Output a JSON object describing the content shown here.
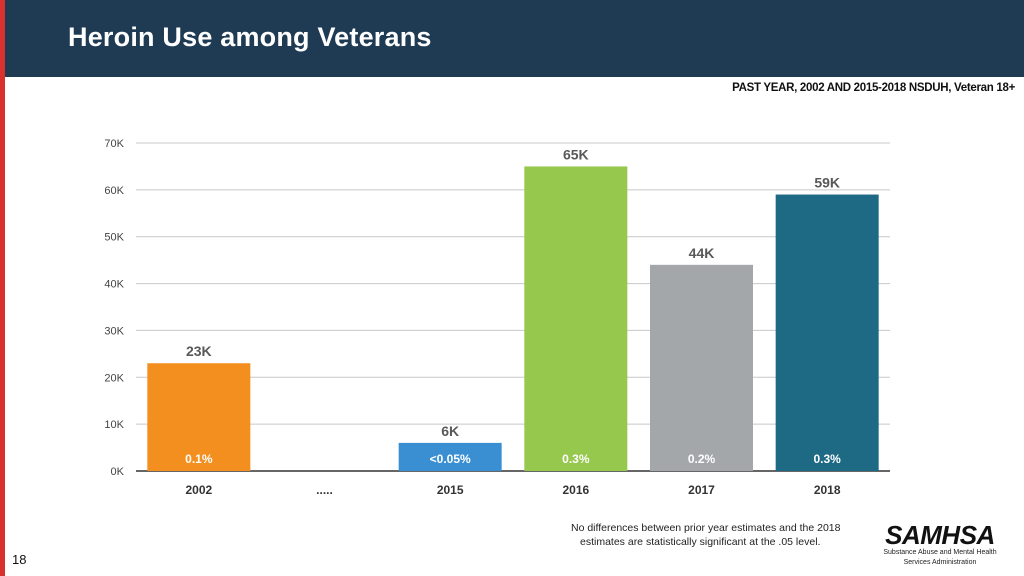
{
  "slide": {
    "title": "Heroin Use among Veterans",
    "subtitle": "PAST YEAR, 2002 AND 2015-2018  NSDUH, Veteran 18+",
    "note_line1": "No differences between prior year estimates and the 2018",
    "note_line2": "estimates are statistically significant at the .05 level.",
    "page_number": "18",
    "logo_text": "SAMHSA",
    "logo_line1": "Substance Abuse and Mental Health",
    "logo_line2": "Services Administration"
  },
  "chart_data": {
    "type": "bar",
    "title": "",
    "xlabel": "",
    "ylabel": "",
    "ylim": [
      0,
      70
    ],
    "yticks": [
      "0K",
      "10K",
      "20K",
      "30K",
      "40K",
      "50K",
      "60K",
      "70K"
    ],
    "grid": true,
    "categories": [
      "2002",
      ".....",
      "2015",
      "2016",
      "2017",
      "2018"
    ],
    "values": [
      23,
      null,
      6,
      65,
      44,
      59
    ],
    "value_labels": [
      "23K",
      "",
      "6K",
      "65K",
      "44K",
      "59K"
    ],
    "percent_labels": [
      "0.1%",
      "",
      "<0.05%",
      "0.3%",
      "0.2%",
      "0.3%"
    ],
    "colors": [
      "#f28f1f",
      "#ffffff",
      "#3a8fd3",
      "#96c84e",
      "#a4a7aa",
      "#1e6a84"
    ]
  }
}
